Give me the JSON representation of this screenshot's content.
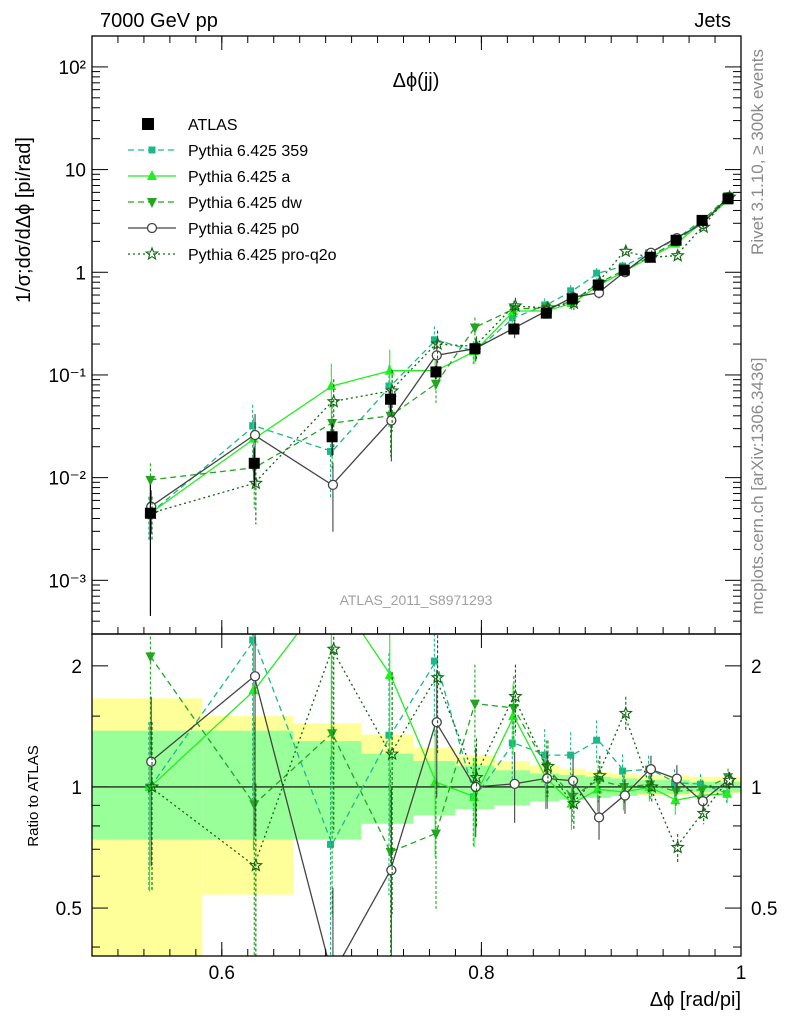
{
  "header": {
    "left": "7000 GeV pp",
    "right": "Jets",
    "plot_title": "Δϕ(jj)",
    "watermark": "ATLAS_2011_S8971293",
    "side_top": "Rivet 3.1.10, ≥ 300k events",
    "side_bottom": "mcplots.cern.ch [arXiv:1306.3436]"
  },
  "colors": {
    "data": "#000000",
    "pythia_359": "#1bb98a",
    "pythia_a": "#22ee22",
    "pythia_dw": "#22a622",
    "pythia_p0": "#444444",
    "pythia_proq2o": "#116611",
    "band_inner": "#99ff99",
    "band_outer": "#ffff99"
  },
  "chart_data": {
    "type": "line",
    "ylabel": "1/σ;dσ/dΔϕ [pi/rad]",
    "xlabel": "Δϕ [rad/pi]",
    "ratio_ylabel": "Ratio to ATLAS",
    "xlim": [
      0.5,
      1.0
    ],
    "ylim": [
      0.0003,
      200
    ],
    "yscale": "log",
    "ratio_ylim": [
      0.38,
      2.4
    ],
    "ratio_yscale": "log",
    "x_ticks": [
      "0.6",
      "0.8",
      "1"
    ],
    "y_ticks": [
      "10⁻³",
      "10⁻²",
      "10⁻¹",
      "1",
      "10",
      "10²"
    ],
    "ratio_ticks": [
      "0.5",
      "1",
      "2"
    ],
    "x": [
      0.545,
      0.625,
      0.685,
      0.73,
      0.765,
      0.795,
      0.825,
      0.85,
      0.87,
      0.89,
      0.91,
      0.93,
      0.95,
      0.97,
      0.99
    ],
    "data": {
      "name": "ATLAS",
      "values": [
        0.0045,
        0.0138,
        0.025,
        0.058,
        0.107,
        0.18,
        0.28,
        0.4,
        0.55,
        0.75,
        1.05,
        1.4,
        2.05,
        3.2,
        5.2
      ],
      "band_inner_lo": [
        0.74,
        0.74,
        0.74,
        0.81,
        0.85,
        0.88,
        0.9,
        0.92,
        0.93,
        0.94,
        0.95,
        0.96,
        0.96,
        0.97,
        0.97
      ],
      "band_inner_hi": [
        1.38,
        1.38,
        1.3,
        1.21,
        1.16,
        1.13,
        1.1,
        1.08,
        1.07,
        1.06,
        1.05,
        1.04,
        1.04,
        1.03,
        1.03
      ],
      "band_outer_lo": [
        0.38,
        0.54,
        0.8,
        0.84,
        0.89,
        0.9,
        0.91,
        0.92,
        0.93,
        0.94,
        0.95,
        0.95,
        0.95,
        0.96,
        0.96
      ],
      "band_outer_hi": [
        1.66,
        1.5,
        1.44,
        1.35,
        1.25,
        1.2,
        1.16,
        1.13,
        1.11,
        1.09,
        1.08,
        1.07,
        1.07,
        1.06,
        1.06
      ]
    },
    "series": [
      {
        "name": "Pythia 6.425 359",
        "key": "pythia_359",
        "dash": "6,4",
        "marker": "square",
        "values": [
          0.0045,
          0.032,
          0.018,
          0.078,
          0.22,
          0.17,
          0.36,
          0.48,
          0.66,
          0.98,
          1.15,
          1.55,
          2.1,
          3.25,
          5.0
        ]
      },
      {
        "name": "Pythia 6.425 a",
        "key": "pythia_a",
        "dash": "",
        "marker": "triangle-up",
        "values": [
          0.0045,
          0.024,
          0.078,
          0.11,
          0.11,
          0.17,
          0.42,
          0.42,
          0.5,
          0.74,
          1.02,
          1.4,
          1.9,
          3.05,
          5.0
        ]
      },
      {
        "name": "Pythia 6.425 dw",
        "key": "pythia_dw",
        "dash": "6,4",
        "marker": "triangle-down",
        "values": [
          0.0095,
          0.0125,
          0.034,
          0.04,
          0.082,
          0.29,
          0.44,
          0.45,
          0.52,
          0.78,
          1.05,
          1.42,
          2.0,
          3.15,
          5.5
        ]
      },
      {
        "name": "Pythia 6.425 p0",
        "key": "pythia_p0",
        "dash": "",
        "marker": "circle",
        "values": [
          0.0052,
          0.026,
          0.0085,
          0.036,
          0.155,
          0.18,
          0.285,
          0.42,
          0.57,
          0.63,
          1.0,
          1.55,
          2.15,
          2.95,
          5.4
        ]
      },
      {
        "name": "Pythia 6.425 pro-q2o",
        "key": "pythia_proq2o",
        "dash": "2,3",
        "marker": "star",
        "values": [
          0.0045,
          0.0088,
          0.055,
          0.07,
          0.2,
          0.19,
          0.47,
          0.45,
          0.5,
          0.8,
          1.6,
          1.4,
          1.45,
          2.75,
          5.4
        ]
      }
    ]
  }
}
